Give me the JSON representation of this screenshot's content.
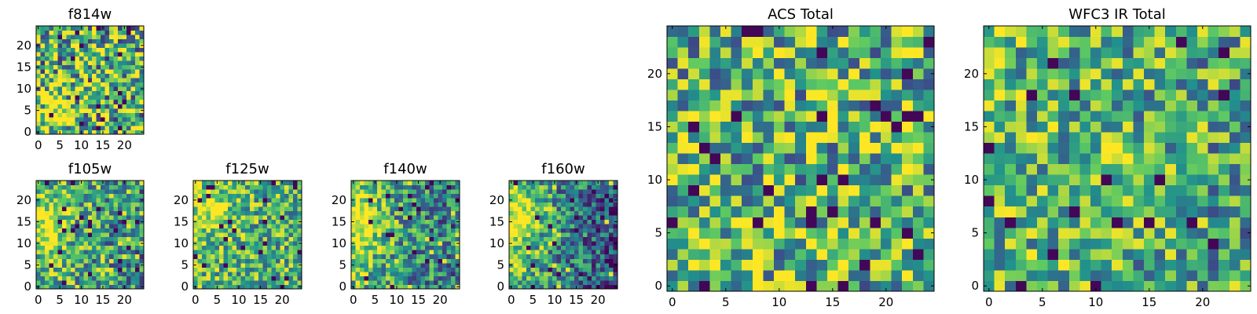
{
  "figure": {
    "colormap": "viridis",
    "colors": [
      "#440154",
      "#3b528b",
      "#21918c",
      "#5ec962",
      "#fde725"
    ],
    "panel_count": 7
  },
  "chart_data": [
    {
      "id": "f814w",
      "type": "heatmap",
      "title": "f814w",
      "grid": [
        25,
        25
      ],
      "xlim": [
        0,
        25
      ],
      "ylim": [
        0,
        25
      ],
      "xticks": [
        0,
        5,
        10,
        15,
        20
      ],
      "xtick_labels": [
        "0",
        "5",
        "10",
        "15",
        "20"
      ],
      "yticks": [
        0,
        5,
        10,
        15,
        20
      ],
      "ytick_labels": [
        "0",
        "5",
        "10",
        "15",
        "20"
      ],
      "pattern": {
        "seed": 11,
        "base": 0.64,
        "noise": 0.5,
        "grad_x": 0.0,
        "grad_y": 0.0,
        "cx": 3,
        "cy": 4,
        "sx": 5,
        "sy": 6,
        "blob": 0.25
      }
    },
    {
      "id": "f105w",
      "type": "heatmap",
      "title": "f105w",
      "grid": [
        25,
        25
      ],
      "xlim": [
        0,
        25
      ],
      "ylim": [
        0,
        25
      ],
      "xticks": [
        0,
        5,
        10,
        15,
        20
      ],
      "xtick_labels": [
        "0",
        "5",
        "10",
        "15",
        "20"
      ],
      "yticks": [
        0,
        5,
        10,
        15,
        20
      ],
      "ytick_labels": [
        "0",
        "5",
        "10",
        "15",
        "20"
      ],
      "pattern": {
        "seed": 23,
        "base": 0.58,
        "noise": 0.36,
        "grad_x": -0.2,
        "grad_y": 0.0,
        "cx": 3,
        "cy": 14,
        "sx": 4,
        "sy": 7,
        "blob": 0.35
      }
    },
    {
      "id": "f125w",
      "type": "heatmap",
      "title": "f125w",
      "grid": [
        25,
        25
      ],
      "xlim": [
        0,
        25
      ],
      "ylim": [
        0,
        25
      ],
      "xticks": [
        0,
        5,
        10,
        15,
        20
      ],
      "xtick_labels": [
        "0",
        "5",
        "10",
        "15",
        "20"
      ],
      "yticks": [
        0,
        5,
        10,
        15,
        20
      ],
      "ytick_labels": [
        "0",
        "5",
        "10",
        "15",
        "20"
      ],
      "pattern": {
        "seed": 37,
        "base": 0.64,
        "noise": 0.34,
        "grad_x": -0.1,
        "grad_y": 0.0,
        "cx": 4,
        "cy": 18,
        "sx": 5,
        "sy": 6,
        "blob": 0.25
      }
    },
    {
      "id": "f140w",
      "type": "heatmap",
      "title": "f140w",
      "grid": [
        25,
        25
      ],
      "xlim": [
        0,
        25
      ],
      "ylim": [
        0,
        25
      ],
      "xticks": [
        0,
        5,
        10,
        15,
        20
      ],
      "xtick_labels": [
        "0",
        "5",
        "10",
        "15",
        "20"
      ],
      "yticks": [
        0,
        5,
        10,
        15,
        20
      ],
      "ytick_labels": [
        "0",
        "5",
        "10",
        "15",
        "20"
      ],
      "pattern": {
        "seed": 41,
        "base": 0.54,
        "noise": 0.34,
        "grad_x": -0.25,
        "grad_y": 0.0,
        "cx": 2,
        "cy": 15,
        "sx": 4,
        "sy": 8,
        "blob": 0.38
      }
    },
    {
      "id": "f160w",
      "type": "heatmap",
      "title": "f160w",
      "grid": [
        25,
        25
      ],
      "xlim": [
        0,
        25
      ],
      "ylim": [
        0,
        25
      ],
      "xticks": [
        0,
        5,
        10,
        15,
        20
      ],
      "xtick_labels": [
        "0",
        "5",
        "10",
        "15",
        "20"
      ],
      "yticks": [
        0,
        5,
        10,
        15,
        20
      ],
      "ytick_labels": [
        "0",
        "5",
        "10",
        "15",
        "20"
      ],
      "pattern": {
        "seed": 53,
        "base": 0.48,
        "noise": 0.34,
        "grad_x": -0.45,
        "grad_y": 0.0,
        "cx": 2,
        "cy": 16,
        "sx": 4,
        "sy": 6,
        "blob": 0.45
      }
    },
    {
      "id": "acs-total",
      "type": "heatmap",
      "title": "ACS Total",
      "grid": [
        25,
        25
      ],
      "xlim": [
        0,
        25
      ],
      "ylim": [
        0,
        25
      ],
      "xticks": [
        0,
        5,
        10,
        15,
        20
      ],
      "xtick_labels": [
        "0",
        "5",
        "10",
        "15",
        "20"
      ],
      "yticks": [
        0,
        5,
        10,
        15,
        20
      ],
      "ytick_labels": [
        "0",
        "5",
        "10",
        "15",
        "20"
      ],
      "pattern": {
        "seed": 67,
        "base": 0.64,
        "noise": 0.42,
        "grad_x": 0.0,
        "grad_y": 0.0,
        "cx": 3,
        "cy": 3,
        "sx": 4,
        "sy": 4,
        "blob": 0.18
      }
    },
    {
      "id": "wfc3-ir-total",
      "type": "heatmap",
      "title": "WFC3 IR Total",
      "grid": [
        25,
        25
      ],
      "xlim": [
        0,
        25
      ],
      "ylim": [
        0,
        25
      ],
      "xticks": [
        0,
        5,
        10,
        15,
        20
      ],
      "xtick_labels": [
        "0",
        "5",
        "10",
        "15",
        "20"
      ],
      "yticks": [
        0,
        5,
        10,
        15,
        20
      ],
      "ytick_labels": [
        "0",
        "5",
        "10",
        "15",
        "20"
      ],
      "pattern": {
        "seed": 79,
        "base": 0.62,
        "noise": 0.36,
        "grad_x": -0.12,
        "grad_y": 0.0,
        "cx": 12,
        "cy": 12,
        "sx": 2,
        "sy": 2,
        "blob": 0.35
      }
    }
  ]
}
